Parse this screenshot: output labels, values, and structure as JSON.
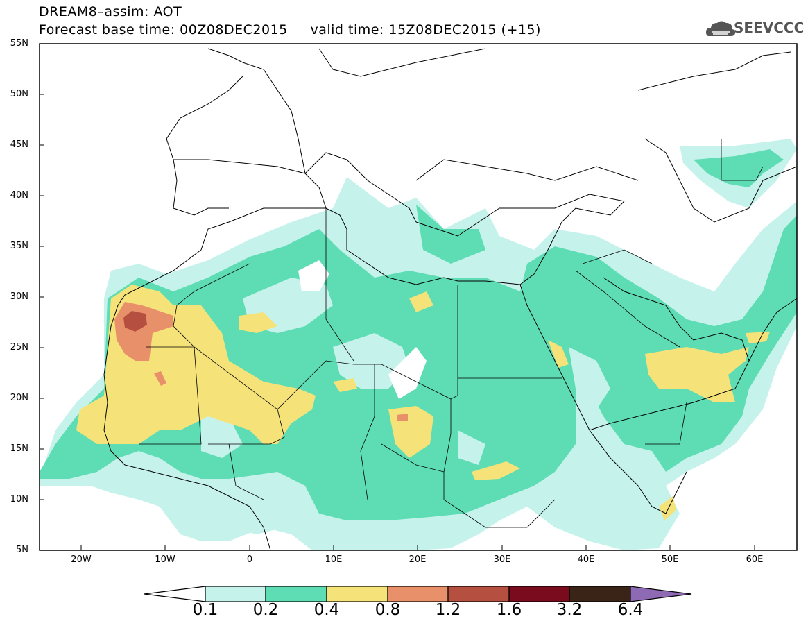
{
  "title": {
    "line1": "DREAM8–assim: AOT",
    "line2": "Forecast base time: 00Z08DEC2015     valid time: 15Z08DEC2015 (+15)"
  },
  "logo": {
    "text": "SEEVCCC",
    "icon": "cloud-icon"
  },
  "map": {
    "lon_range": [
      -25,
      65
    ],
    "lat_range": [
      5,
      55
    ],
    "y_ticks": [
      "55N",
      "50N",
      "45N",
      "40N",
      "35N",
      "30N",
      "25N",
      "20N",
      "15N",
      "10N",
      "5N"
    ],
    "x_ticks": [
      "20W",
      "10W",
      "0",
      "10E",
      "20E",
      "30E",
      "40E",
      "50E",
      "60E"
    ]
  },
  "colorbar": {
    "labels": [
      "0.1",
      "0.2",
      "0.4",
      "0.8",
      "1.2",
      "1.6",
      "3.2",
      "6.4"
    ],
    "colors": [
      "#c6f2ec",
      "#5edcb4",
      "#f5e37a",
      "#e8906a",
      "#b55040",
      "#7a0a1e",
      "#3a2418",
      "#8e6ab4"
    ]
  }
}
